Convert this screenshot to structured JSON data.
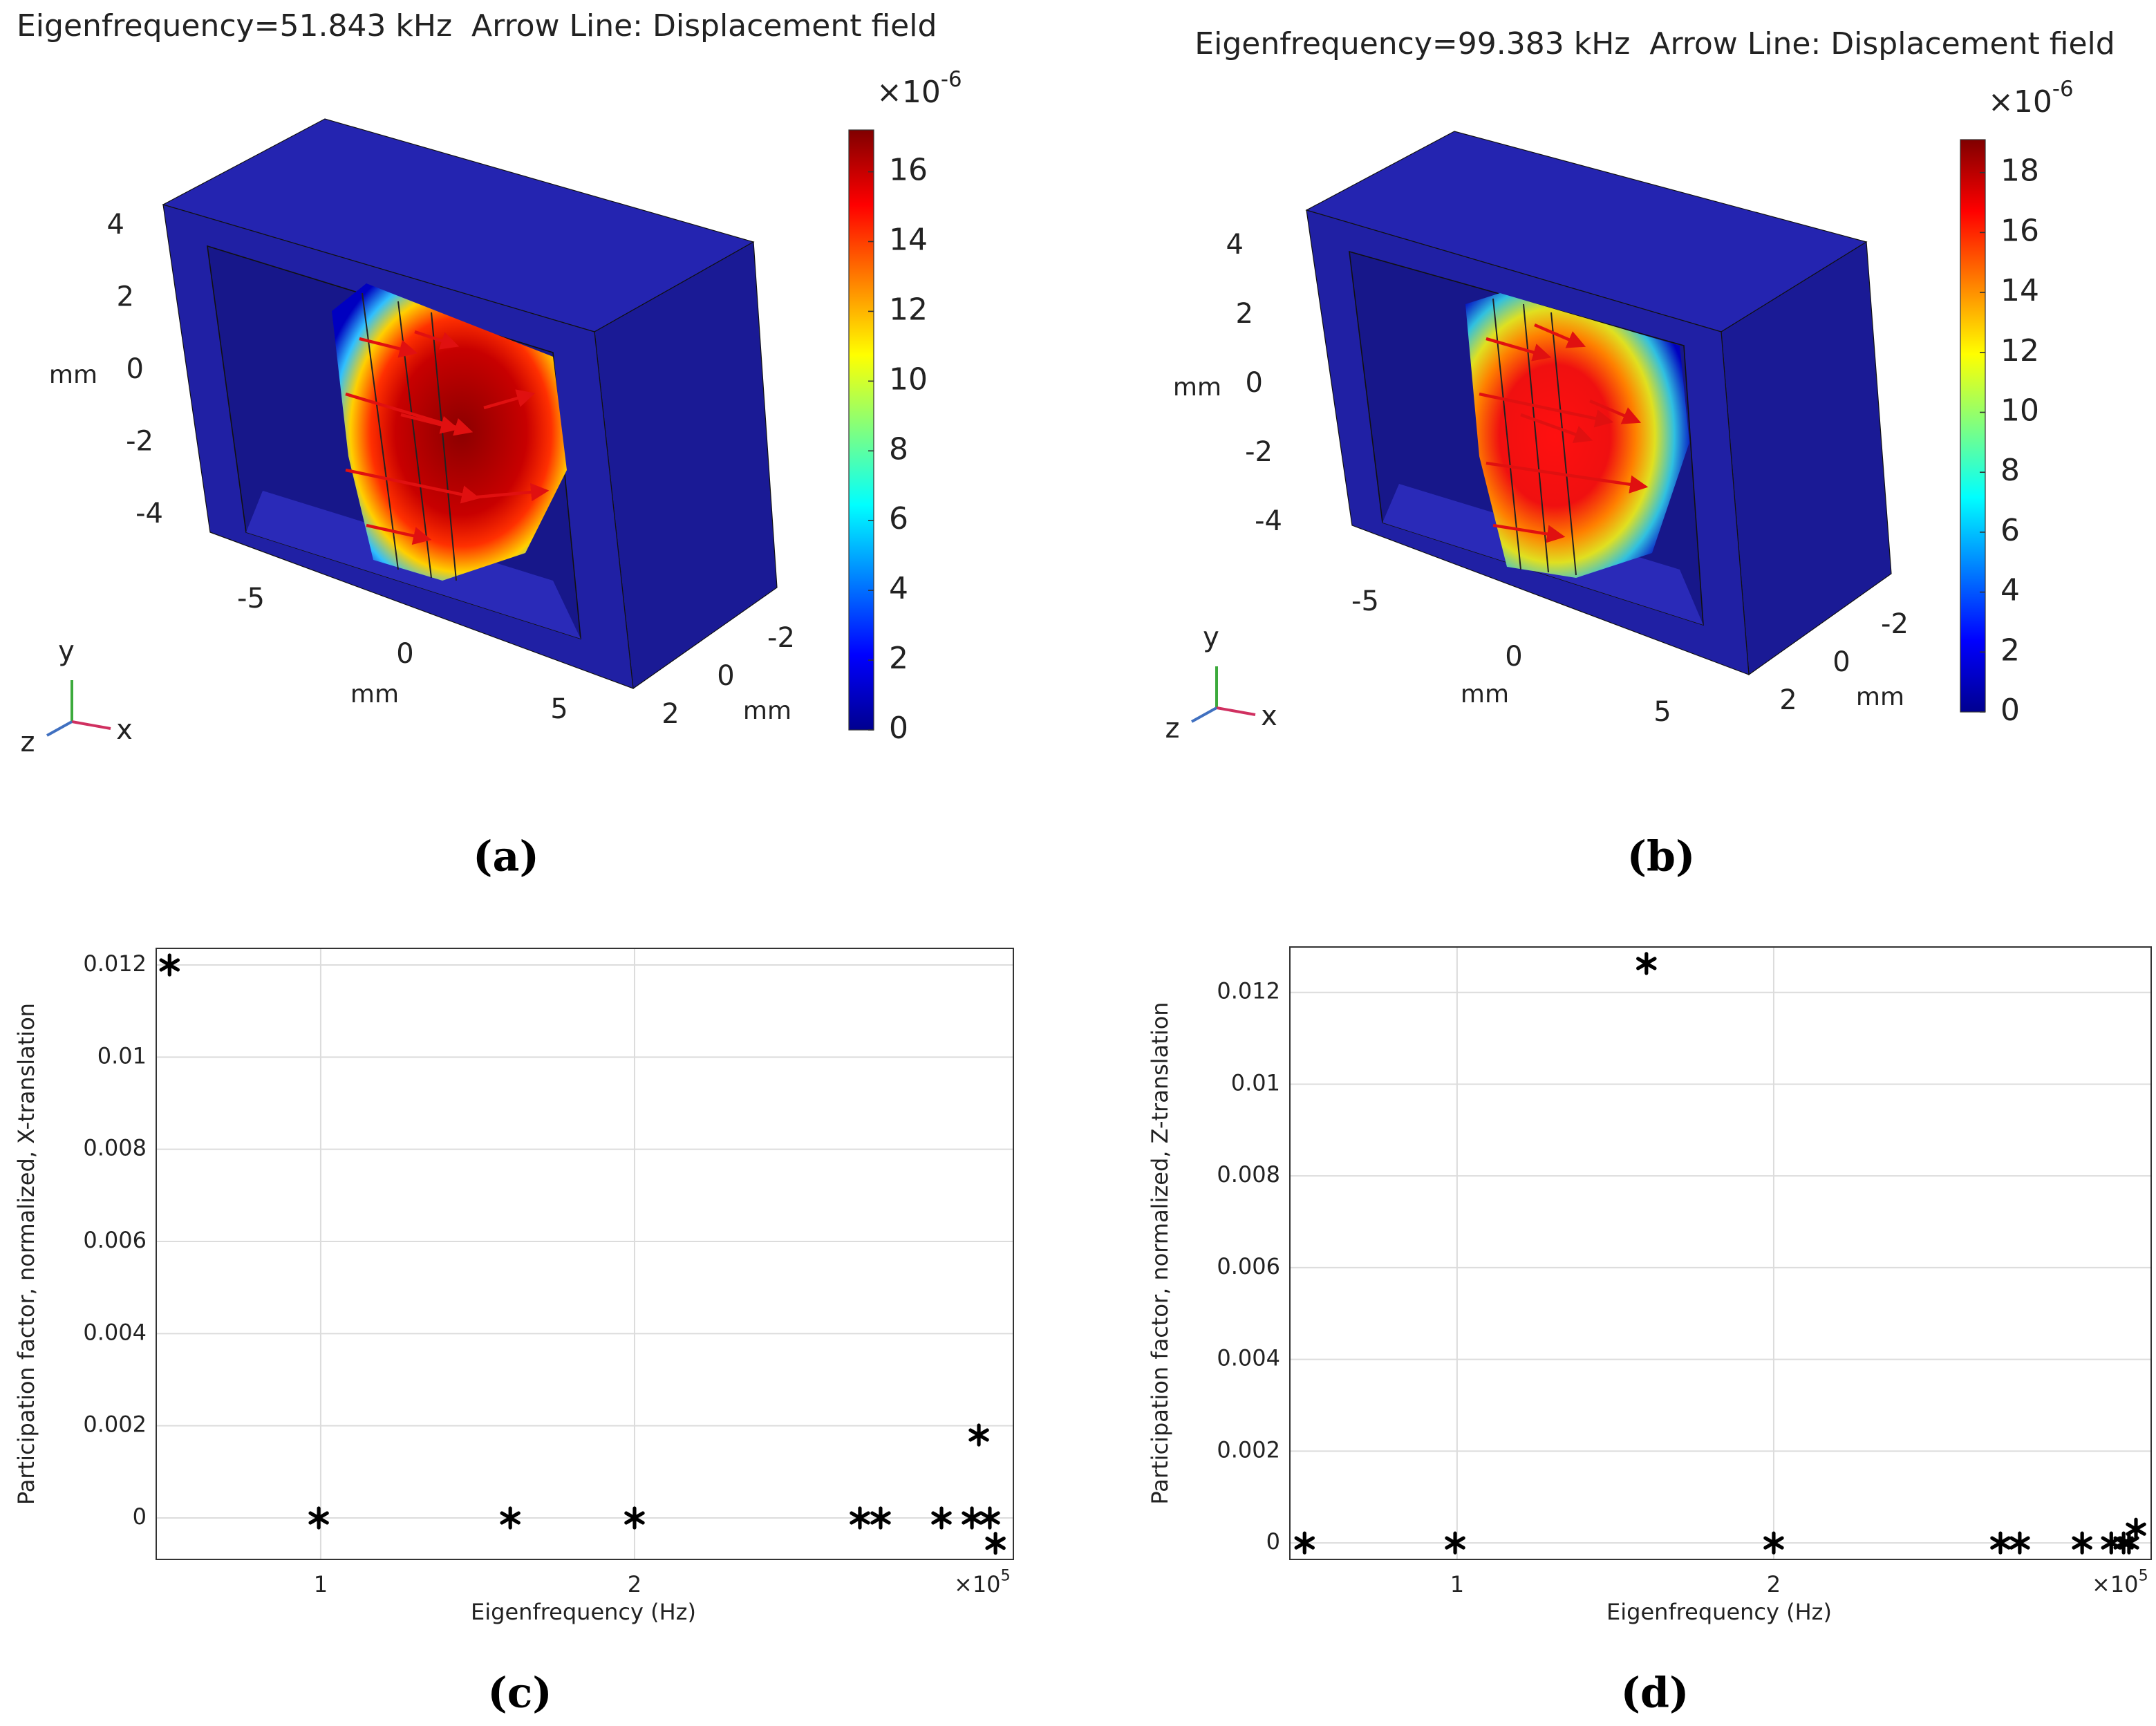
{
  "chart_data": [
    {
      "type": "mode3d",
      "title": "Eigenfrequency=51.843 kHz  Arrow Line: Displacement field",
      "label": "(a)",
      "xlabel": "mm",
      "ylabel": "mm",
      "zlabel": "mm",
      "xticks": [
        -5,
        0,
        5
      ],
      "yticks": [
        4,
        2,
        0,
        -2,
        -4
      ],
      "zticks": [
        -2,
        0,
        2
      ],
      "triad": [
        "x",
        "y",
        "z"
      ],
      "colorbar": {
        "clim": [
          0,
          17.2
        ],
        "ticks": [
          0,
          2,
          4,
          6,
          8,
          10,
          12,
          14,
          16
        ],
        "scale_base": "×10",
        "scale_exponent": "-6"
      }
    },
    {
      "type": "mode3d",
      "title": "Eigenfrequency=99.383 kHz  Arrow Line: Displacement field",
      "label": "(b)",
      "xlabel": "mm",
      "ylabel": "mm",
      "zlabel": "mm",
      "xticks": [
        -5,
        0,
        5
      ],
      "yticks": [
        4,
        2,
        0,
        -2,
        -4
      ],
      "zticks": [
        -2,
        0,
        2
      ],
      "triad": [
        "x",
        "y",
        "z"
      ],
      "colorbar": {
        "clim": [
          0,
          19.1
        ],
        "ticks": [
          0,
          2,
          4,
          6,
          8,
          10,
          12,
          14,
          16,
          18
        ],
        "scale_base": "×10",
        "scale_exponent": "-6"
      }
    },
    {
      "type": "scatter",
      "label": "(c)",
      "xlabel": "Eigenfrequency (Hz)",
      "ylabel": "Participation factor, normalized, X-translation",
      "xlim": [
        47600,
        320700
      ],
      "xticks": [
        {
          "value": 100000,
          "label": "1"
        },
        {
          "value": 200000,
          "label": "2"
        }
      ],
      "x_scale_base": "×10",
      "x_scale_exponent": "5",
      "ylim": [
        -0.0009,
        0.01236
      ],
      "yticks": [
        0,
        0.002,
        0.004,
        0.006,
        0.008,
        0.01,
        0.012
      ],
      "grid": true,
      "color": "#000000",
      "x": [
        51843,
        99383,
        160400,
        200000,
        271800,
        278400,
        297800,
        307500,
        309700,
        313200,
        315000
      ],
      "values": [
        0.012,
        0,
        0,
        0,
        0,
        0,
        0,
        0,
        0.0018,
        0,
        -0.00055
      ]
    },
    {
      "type": "scatter",
      "label": "(d)",
      "xlabel": "Eigenfrequency (Hz)",
      "ylabel": "Participation factor, normalized, Z-translation",
      "xlim": [
        47200,
        319200
      ],
      "xticks": [
        {
          "value": 100000,
          "label": "1"
        },
        {
          "value": 200000,
          "label": "2"
        }
      ],
      "x_scale_base": "×10",
      "x_scale_exponent": "5",
      "ylim": [
        -0.00036,
        0.01299
      ],
      "yticks": [
        0,
        0.002,
        0.004,
        0.006,
        0.008,
        0.01,
        0.012
      ],
      "grid": true,
      "color": "#000000",
      "x": [
        51843,
        99383,
        159800,
        200000,
        271600,
        277700,
        297400,
        306600,
        310500,
        312200,
        314400
      ],
      "values": [
        0,
        0,
        0.01263,
        0,
        0,
        0,
        0,
        0,
        0,
        0,
        0.0003
      ]
    }
  ]
}
